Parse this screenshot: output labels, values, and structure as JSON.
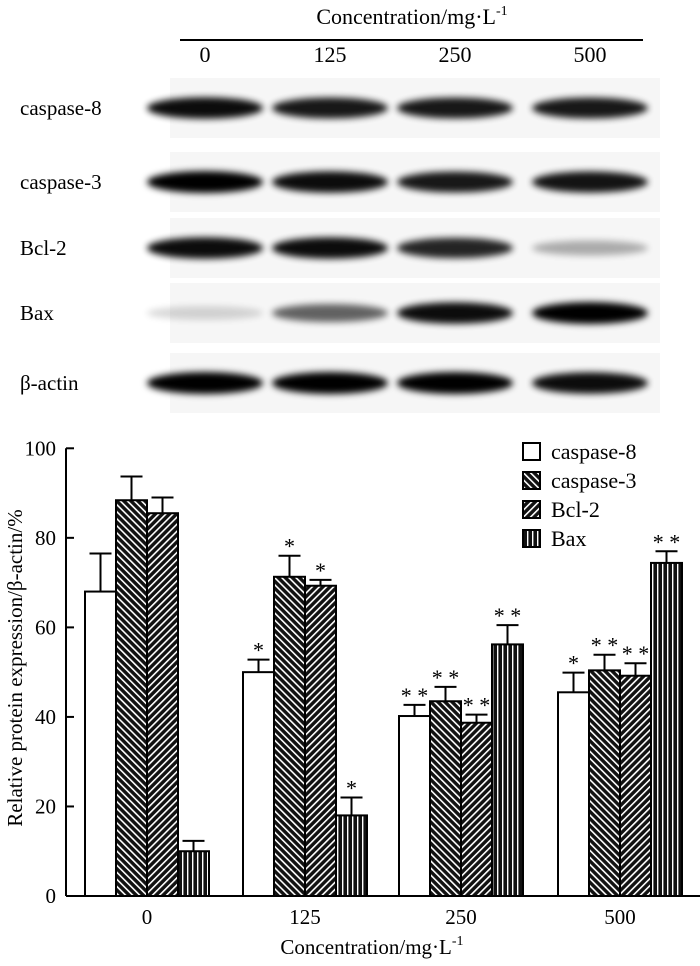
{
  "blot": {
    "header": "Concentration/mg·L",
    "header_sup": "-1",
    "lanes": [
      "0",
      "125",
      "250",
      "500"
    ],
    "rows": [
      {
        "label": "caspase-8",
        "intensity": [
          0.95,
          0.9,
          0.9,
          0.9
        ]
      },
      {
        "label": "caspase-3",
        "intensity": [
          1.0,
          0.95,
          0.9,
          0.92
        ]
      },
      {
        "label": "Bcl-2",
        "intensity": [
          0.95,
          0.95,
          0.85,
          0.3
        ]
      },
      {
        "label": "Bax",
        "intensity": [
          0.15,
          0.6,
          0.95,
          1.0
        ]
      },
      {
        "label": "β-actin",
        "intensity": [
          1.0,
          1.0,
          1.0,
          0.95
        ]
      }
    ]
  },
  "chart_data": {
    "type": "bar",
    "xlabel": "Concentration/mg·L",
    "xlabel_sup": "-1",
    "ylabel": "Relative protein expression/β-actin/%",
    "ylim": [
      0,
      100
    ],
    "yticks": [
      0,
      20,
      40,
      60,
      80,
      100
    ],
    "categories": [
      "0",
      "125",
      "250",
      "500"
    ],
    "legend_position": "top-right",
    "grid": false,
    "series": [
      {
        "name": "caspase-8",
        "pattern": "open",
        "values": [
          68,
          50,
          40.2,
          45.5
        ],
        "errors": [
          8.5,
          2.8,
          2.5,
          4.4
        ],
        "significance": [
          "",
          "*",
          "**",
          "*"
        ]
      },
      {
        "name": "caspase-3",
        "pattern": "back-diagonal",
        "values": [
          88.4,
          71.3,
          43.5,
          50.4
        ],
        "errors": [
          5.3,
          4.7,
          3.2,
          3.5
        ],
        "significance": [
          "",
          "*",
          "**",
          "**"
        ]
      },
      {
        "name": "Bcl-2",
        "pattern": "forward-diagonal",
        "values": [
          85.5,
          69.3,
          38.7,
          49.2
        ],
        "errors": [
          3.5,
          1.3,
          1.8,
          2.8
        ],
        "significance": [
          "",
          "*",
          "**",
          "**"
        ]
      },
      {
        "name": "Bax",
        "pattern": "vertical",
        "values": [
          10,
          18,
          56.2,
          74.4
        ],
        "errors": [
          2.3,
          4,
          4.3,
          2.6
        ],
        "significance": [
          "",
          "*",
          "**",
          "**"
        ]
      }
    ]
  }
}
